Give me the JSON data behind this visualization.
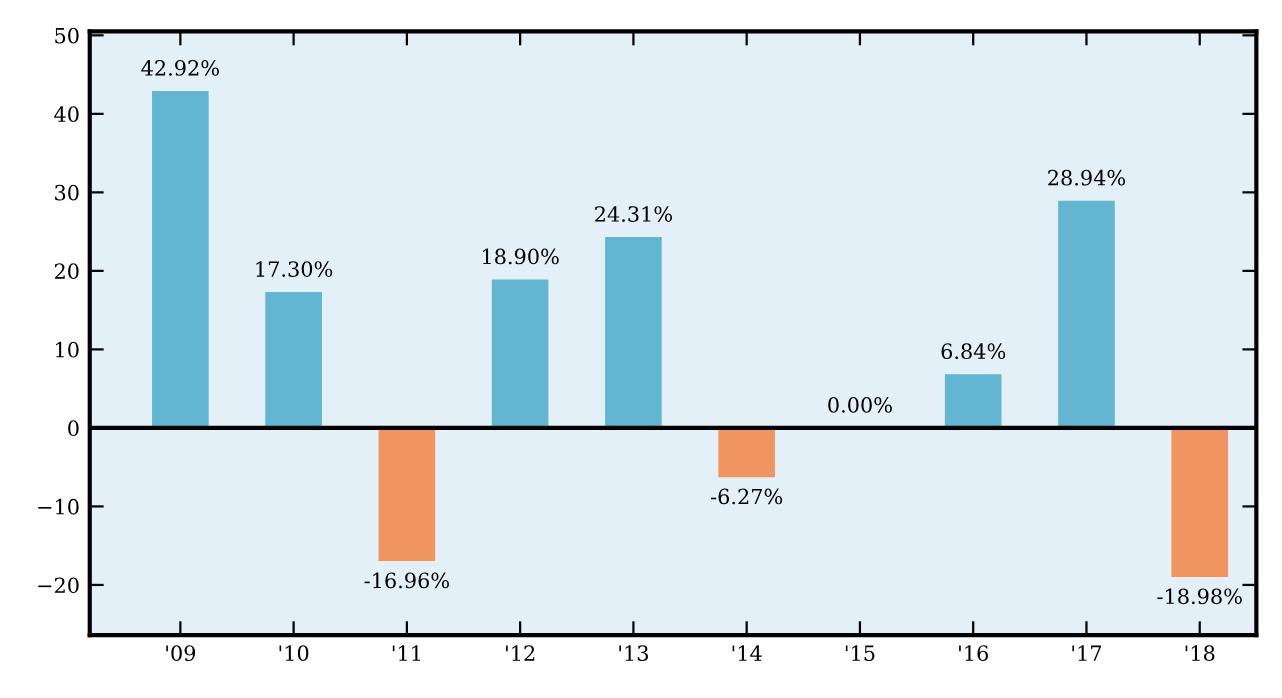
{
  "chart_data": {
    "type": "bar",
    "categories": [
      "'09",
      "'10",
      "'11",
      "'12",
      "'13",
      "'14",
      "'15",
      "'16",
      "'17",
      "'18"
    ],
    "values": [
      42.92,
      17.3,
      -16.96,
      18.9,
      24.31,
      -6.27,
      0.0,
      6.84,
      28.94,
      -18.98
    ],
    "value_labels": [
      "42.92%",
      "17.30%",
      "-16.96%",
      "18.90%",
      "24.31%",
      "-6.27%",
      "0.00%",
      "6.84%",
      "28.94%",
      "-18.98%"
    ],
    "colors": [
      "#62b6d2",
      "#62b6d2",
      "#f0955f",
      "#62b6d2",
      "#62b6d2",
      "#f0955f",
      "#62b6d2",
      "#62b6d2",
      "#62b6d2",
      "#f0955f"
    ],
    "ylim": [
      -26.4,
      50.5
    ],
    "yticks": [
      {
        "value": -20,
        "label": "−20"
      },
      {
        "value": -10,
        "label": "−10"
      },
      0,
      10,
      20,
      30,
      40,
      50
    ],
    "ref_lines": [
      {
        "axis": "y",
        "value": 0,
        "color": "#000000"
      }
    ],
    "grid": false,
    "legend": false
  }
}
